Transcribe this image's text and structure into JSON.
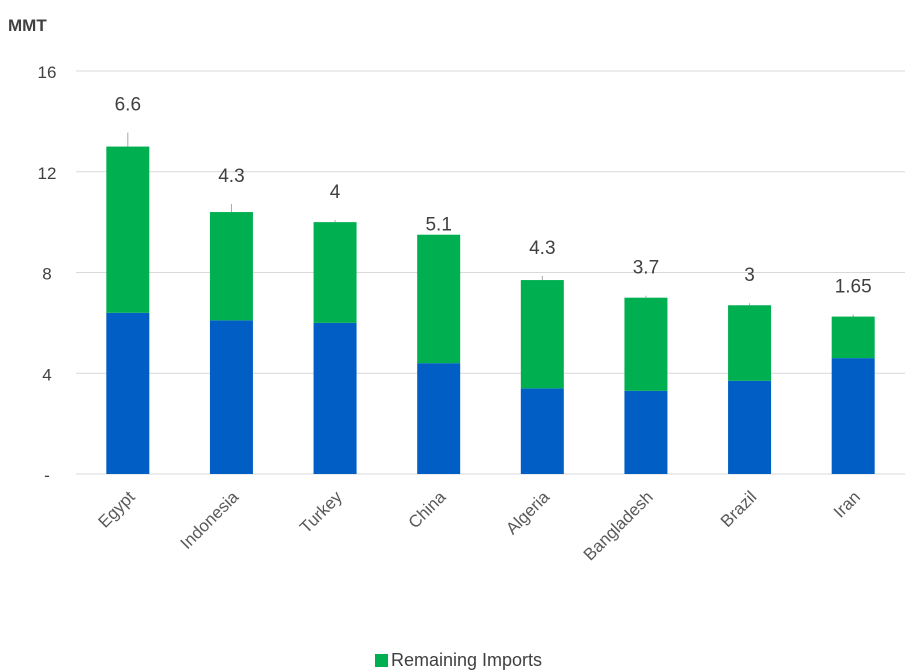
{
  "chart_data": {
    "type": "bar",
    "stacked": true,
    "unit_label": "MMT",
    "categories": [
      "Egypt",
      "Indonesia",
      "Turkey",
      "China",
      "Algeria",
      "Bangladesh",
      "Brazil",
      "Iran"
    ],
    "series": [
      {
        "values": [
          6.4,
          6.1,
          6.0,
          4.4,
          3.4,
          3.3,
          3.7,
          4.6
        ],
        "color": "#005ec4"
      },
      {
        "name": "Remaining Imports",
        "values": [
          6.6,
          4.3,
          4.0,
          5.1,
          4.3,
          3.7,
          3.0,
          1.65
        ],
        "color": "#00b050"
      }
    ],
    "data_labels": [
      "6.6",
      "4.3",
      "4",
      "5.1",
      "4.3",
      "3.7",
      "3",
      "1.65"
    ],
    "y_ticks": [
      "-",
      "4",
      "8",
      "12",
      "16"
    ],
    "ylim": [
      0,
      16
    ],
    "grid": true,
    "legend_position": "bottom"
  }
}
